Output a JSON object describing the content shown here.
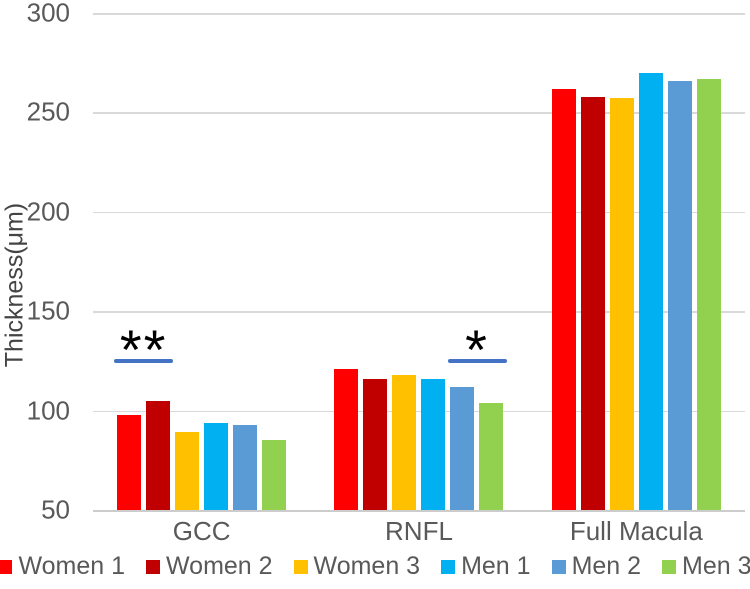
{
  "chart_data": {
    "type": "bar",
    "title": "",
    "xlabel": "",
    "ylabel": "Thickness(μm)",
    "categories": [
      "GCC",
      "RNFL",
      "Full Macula"
    ],
    "series": [
      {
        "name": "Women 1",
        "color": "#FF0000",
        "values": [
          98,
          121,
          262
        ]
      },
      {
        "name": "Women 2",
        "color": "#C00000",
        "values": [
          105,
          116,
          258
        ]
      },
      {
        "name": "Women 3",
        "color": "#FFC000",
        "values": [
          89,
          118,
          257
        ]
      },
      {
        "name": "Men 1",
        "color": "#00B0F0",
        "values": [
          94,
          116,
          270
        ]
      },
      {
        "name": "Men 2",
        "color": "#5B9BD5",
        "values": [
          93,
          112,
          266
        ]
      },
      {
        "name": "Men 3",
        "color": "#92D050",
        "values": [
          85,
          104,
          267
        ]
      }
    ],
    "y_axis": {
      "min": 50,
      "max": 300,
      "step": 50
    },
    "grid": true,
    "legend_position": "bottom",
    "annotations": [
      {
        "symbol": "**",
        "category_index": 0,
        "bar_indices": [
          0,
          1
        ],
        "line_value": 126,
        "line_color": "#4472C4"
      },
      {
        "symbol": "*",
        "category_index": 1,
        "bar_indices": [
          4,
          5
        ],
        "line_value": 126,
        "line_color": "#4472C4"
      }
    ],
    "colors": {
      "tick_text": "#595959",
      "gridline": "#D9D9D9",
      "axis_line": "#CCCCCC",
      "annotation_text": "#000000",
      "background": "#FFFFFF"
    }
  }
}
